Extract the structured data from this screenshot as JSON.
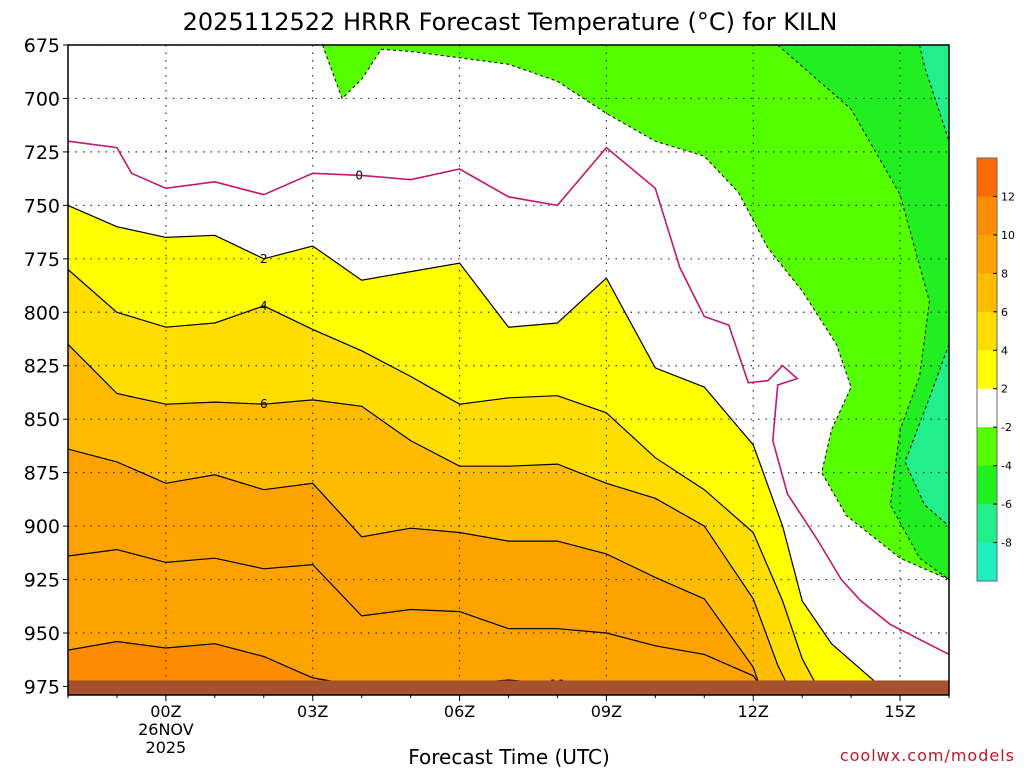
{
  "chart_data": {
    "type": "heatmap",
    "title": "2025112522 HRRR Forecast Temperature (°C) for KILN",
    "xlabel": "Forecast Time (UTC)",
    "ylabel": "",
    "x_ticks": [
      {
        "label": "00Z",
        "sub": [
          "26NOV",
          "2025"
        ],
        "hour": 0
      },
      {
        "label": "03Z",
        "sub": [],
        "hour": 3
      },
      {
        "label": "06Z",
        "sub": [],
        "hour": 6
      },
      {
        "label": "09Z",
        "sub": [],
        "hour": 9
      },
      {
        "label": "12Z",
        "sub": [],
        "hour": 12
      },
      {
        "label": "15Z",
        "sub": [],
        "hour": 15
      }
    ],
    "xlim": [
      -2,
      16
    ],
    "y_ticks": [
      675,
      700,
      725,
      750,
      775,
      800,
      825,
      850,
      875,
      900,
      925,
      950,
      975
    ],
    "ylim": [
      675,
      979
    ],
    "grid": true,
    "colorbar": {
      "levels": [
        14,
        12,
        10,
        8,
        6,
        4,
        2,
        -2,
        -4,
        -6,
        -8,
        -10
      ],
      "tick_labels": [
        "12",
        "10",
        "8",
        "6",
        "4",
        "2",
        "-2",
        "-4",
        "-6",
        "-8"
      ],
      "colors": [
        "#fe6a00",
        "#fe8c00",
        "#fea200",
        "#ffbb00",
        "#ffdd00",
        "#ffff00",
        "#ffffff",
        "#55ff00",
        "#22ef22",
        "#22ef8c",
        "#22efbf"
      ]
    },
    "fill_bands": [
      {
        "from": 12,
        "color": "#fe6a00"
      },
      {
        "from": 10,
        "color": "#fe8c00"
      },
      {
        "from": 8,
        "color": "#fea200"
      },
      {
        "from": 6,
        "color": "#ffbb00"
      },
      {
        "from": 4,
        "color": "#ffdd00"
      },
      {
        "from": 2,
        "color": "#ffff00"
      }
    ],
    "contours": [
      {
        "level": 0,
        "label": "0",
        "color": "#c2186f",
        "points": [
          [
            -2,
            720
          ],
          [
            -1,
            723
          ],
          [
            -0.7,
            735
          ],
          [
            0,
            742
          ],
          [
            1,
            739
          ],
          [
            2,
            745
          ],
          [
            3,
            735
          ],
          [
            4,
            736
          ],
          [
            5,
            738
          ],
          [
            6,
            733
          ],
          [
            7,
            746
          ],
          [
            8,
            750
          ],
          [
            9,
            723
          ],
          [
            10,
            742
          ],
          [
            10.5,
            779
          ],
          [
            11,
            802
          ],
          [
            11.5,
            806
          ],
          [
            11.9,
            833
          ],
          [
            12.3,
            832
          ],
          [
            12.6,
            825
          ],
          [
            12.9,
            831
          ],
          [
            12.5,
            834
          ],
          [
            12.4,
            860
          ],
          [
            12.7,
            885
          ],
          [
            13.3,
            906
          ],
          [
            13.8,
            925
          ],
          [
            14.2,
            935
          ],
          [
            14.8,
            946
          ],
          [
            16,
            960
          ]
        ],
        "label_pos": [
          3.95,
          736
        ]
      },
      {
        "level": 2,
        "label": "2",
        "color": "#000000",
        "points": [
          [
            -2,
            750
          ],
          [
            -1,
            760
          ],
          [
            0,
            765
          ],
          [
            1,
            764
          ],
          [
            2,
            775
          ],
          [
            3,
            769
          ],
          [
            4,
            785
          ],
          [
            5,
            781
          ],
          [
            6,
            777
          ],
          [
            7,
            807
          ],
          [
            8,
            805
          ],
          [
            9,
            784
          ],
          [
            10,
            826
          ],
          [
            11,
            835
          ],
          [
            12,
            862
          ],
          [
            12.6,
            900
          ],
          [
            13,
            935
          ],
          [
            13.6,
            955
          ],
          [
            14.5,
            973
          ]
        ],
        "label_pos": [
          2,
          775
        ]
      },
      {
        "level": 4,
        "label": "4",
        "color": "#000000",
        "points": [
          [
            -2,
            780
          ],
          [
            -1,
            800
          ],
          [
            0,
            807
          ],
          [
            1,
            805
          ],
          [
            2,
            797
          ],
          [
            3,
            808
          ],
          [
            4,
            818
          ],
          [
            5,
            830
          ],
          [
            6,
            843
          ],
          [
            7,
            840
          ],
          [
            8,
            839
          ],
          [
            9,
            847
          ],
          [
            10,
            868
          ],
          [
            11,
            883
          ],
          [
            12,
            903
          ],
          [
            12.6,
            935
          ],
          [
            13,
            962
          ],
          [
            13.4,
            979
          ]
        ],
        "label_pos": [
          2,
          797
        ]
      },
      {
        "level": 6,
        "label": "6",
        "color": "#000000",
        "points": [
          [
            -2,
            815
          ],
          [
            -1,
            838
          ],
          [
            0,
            843
          ],
          [
            1,
            842
          ],
          [
            2,
            843
          ],
          [
            3,
            841
          ],
          [
            4,
            844
          ],
          [
            5,
            860
          ],
          [
            6,
            872
          ],
          [
            7,
            872
          ],
          [
            8,
            871
          ],
          [
            9,
            880
          ],
          [
            10,
            887
          ],
          [
            11,
            900
          ],
          [
            12,
            934
          ],
          [
            12.5,
            965
          ],
          [
            12.8,
            979
          ]
        ],
        "label_pos": [
          2,
          843
        ]
      },
      {
        "level": 8,
        "label": "",
        "color": "#000000",
        "points": [
          [
            -2,
            864
          ],
          [
            -1,
            870
          ],
          [
            0,
            880
          ],
          [
            1,
            876
          ],
          [
            2,
            883
          ],
          [
            3,
            880
          ],
          [
            4,
            905
          ],
          [
            5,
            901
          ],
          [
            6,
            903
          ],
          [
            7,
            907
          ],
          [
            8,
            907
          ],
          [
            9,
            913
          ],
          [
            10,
            924
          ],
          [
            11,
            934
          ],
          [
            12,
            966
          ],
          [
            12.2,
            979
          ]
        ],
        "label_pos": null
      },
      {
        "level": 9,
        "label": "",
        "color": "#000000",
        "points": [
          [
            -2,
            914
          ],
          [
            -1,
            911
          ],
          [
            0,
            917
          ],
          [
            1,
            915
          ],
          [
            2,
            920
          ],
          [
            3,
            918
          ],
          [
            4,
            942
          ],
          [
            5,
            939
          ],
          [
            6,
            940
          ],
          [
            7,
            948
          ],
          [
            8,
            948
          ],
          [
            9,
            950
          ],
          [
            10,
            956
          ],
          [
            11,
            960
          ],
          [
            12,
            970
          ],
          [
            12.3,
            979
          ]
        ],
        "label_pos": null
      },
      {
        "level": 10,
        "label": "10",
        "color": "#000000",
        "points": [
          [
            -2,
            958
          ],
          [
            -1,
            954
          ],
          [
            0,
            957
          ],
          [
            1,
            955
          ],
          [
            2,
            961
          ],
          [
            3,
            971
          ],
          [
            4,
            975
          ],
          [
            5,
            974
          ],
          [
            6,
            974
          ],
          [
            7,
            972
          ],
          [
            8,
            974
          ],
          [
            9,
            973
          ],
          [
            10,
            975
          ],
          [
            11,
            976
          ]
        ],
        "label_pos": [
          8,
          974
        ]
      }
    ],
    "neg_contours": [
      {
        "level": -2,
        "color": "#000000",
        "points": [
          [
            3.2,
            675
          ],
          [
            3.6,
            700
          ],
          [
            4,
            691
          ],
          [
            4.4,
            677
          ],
          [
            5,
            678
          ],
          [
            7,
            684
          ],
          [
            8,
            692
          ],
          [
            9,
            707
          ],
          [
            10,
            720
          ],
          [
            11,
            727
          ],
          [
            11.7,
            744
          ],
          [
            12.3,
            770
          ],
          [
            13,
            790
          ],
          [
            13.7,
            815
          ],
          [
            14,
            835
          ],
          [
            13.6,
            855
          ],
          [
            13.4,
            875
          ],
          [
            13.9,
            895
          ],
          [
            15,
            915
          ],
          [
            16,
            925
          ]
        ]
      },
      {
        "level": -4,
        "color": "#000000",
        "points": [
          [
            12.5,
            675
          ],
          [
            13,
            685
          ],
          [
            14,
            705
          ],
          [
            15,
            745
          ],
          [
            15.6,
            795
          ],
          [
            15.4,
            830
          ],
          [
            15,
            855
          ],
          [
            14.8,
            890
          ],
          [
            15.4,
            915
          ],
          [
            16,
            925
          ]
        ]
      },
      {
        "level": -6,
        "color": "#000000",
        "points": [
          [
            15.4,
            675
          ],
          [
            15.5,
            685
          ],
          [
            16,
            720
          ]
        ]
      },
      {
        "level": -6,
        "color": "#000000",
        "points": [
          [
            16,
            815
          ],
          [
            15.6,
            840
          ],
          [
            15.1,
            870
          ],
          [
            15.5,
            890
          ],
          [
            16,
            900
          ]
        ]
      }
    ],
    "green_fill": {
      "color": "#55ff00",
      "points": [
        [
          3.2,
          675
        ],
        [
          3.6,
          700
        ],
        [
          4,
          691
        ],
        [
          4.4,
          677
        ],
        [
          5,
          678
        ],
        [
          7,
          684
        ],
        [
          8,
          692
        ],
        [
          9,
          707
        ],
        [
          10,
          720
        ],
        [
          11,
          727
        ],
        [
          11.7,
          744
        ],
        [
          12.3,
          770
        ],
        [
          13,
          790
        ],
        [
          13.7,
          815
        ],
        [
          14,
          835
        ],
        [
          13.6,
          855
        ],
        [
          13.4,
          875
        ],
        [
          13.9,
          895
        ],
        [
          15,
          915
        ],
        [
          16,
          925
        ],
        [
          16,
          675
        ]
      ]
    },
    "dkgreen_fill": {
      "color": "#22ef22",
      "points": [
        [
          12.5,
          675
        ],
        [
          13,
          685
        ],
        [
          14,
          705
        ],
        [
          15,
          745
        ],
        [
          15.6,
          795
        ],
        [
          15.4,
          830
        ],
        [
          15,
          855
        ],
        [
          14.8,
          890
        ],
        [
          15.4,
          915
        ],
        [
          16,
          925
        ],
        [
          16,
          675
        ]
      ]
    },
    "teal_fill": {
      "color": "#22ef8c",
      "points": [
        [
          15.4,
          675
        ],
        [
          15.5,
          685
        ],
        [
          16,
          720
        ],
        [
          16,
          675
        ]
      ]
    },
    "teal_fill2": {
      "color": "#22ef8c",
      "points": [
        [
          16,
          815
        ],
        [
          15.6,
          840
        ],
        [
          15.1,
          870
        ],
        [
          15.5,
          890
        ],
        [
          16,
          900
        ]
      ]
    },
    "ground_color": "#a5522e"
  },
  "credit": "coolwx.com/models"
}
